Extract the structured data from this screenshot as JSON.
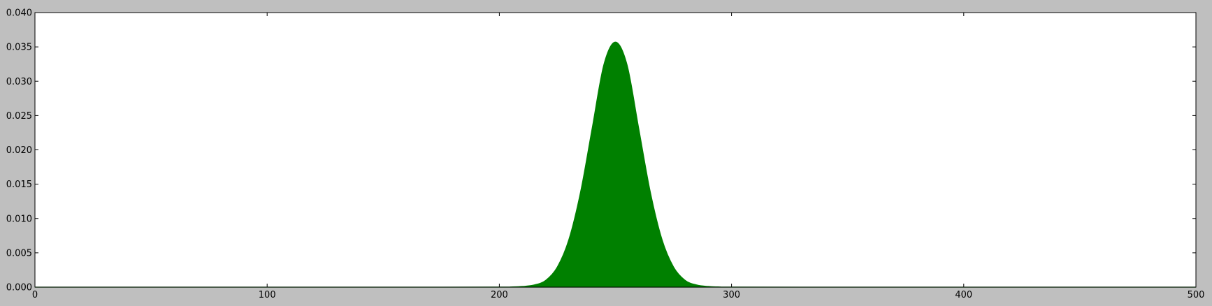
{
  "chart_data": {
    "type": "area",
    "title": "",
    "xlabel": "",
    "ylabel": "",
    "xlim": [
      0,
      500
    ],
    "ylim": [
      0,
      0.04
    ],
    "grid": false,
    "legend": "none",
    "x_ticks": [
      0,
      100,
      200,
      300,
      400,
      500
    ],
    "x_tick_labels": [
      "0",
      "100",
      "200",
      "300",
      "400",
      "500"
    ],
    "y_ticks": [
      0.0,
      0.005,
      0.01,
      0.015,
      0.02,
      0.025,
      0.03,
      0.035,
      0.04
    ],
    "y_tick_labels": [
      "0.000",
      "0.005",
      "0.010",
      "0.015",
      "0.020",
      "0.025",
      "0.030",
      "0.035",
      "0.040"
    ],
    "series": [
      {
        "color": "#008000",
        "x": [
          0,
          150,
          200,
          205,
          210,
          215,
          220,
          225,
          230,
          235,
          240,
          245,
          250,
          255,
          260,
          265,
          270,
          275,
          280,
          285,
          290,
          295,
          300,
          350,
          500
        ],
        "y": [
          0,
          0,
          1e-05,
          3e-05,
          0.0001,
          0.00032,
          0.001,
          0.00295,
          0.007,
          0.0139,
          0.0232,
          0.0324,
          0.0357,
          0.0324,
          0.0232,
          0.0139,
          0.007,
          0.00295,
          0.001,
          0.00032,
          0.0001,
          3e-05,
          1e-05,
          0,
          0
        ]
      }
    ]
  },
  "colors": {
    "figure_background": "#bfbfbf",
    "plot_background": "#ffffff",
    "fill": "#008000"
  }
}
